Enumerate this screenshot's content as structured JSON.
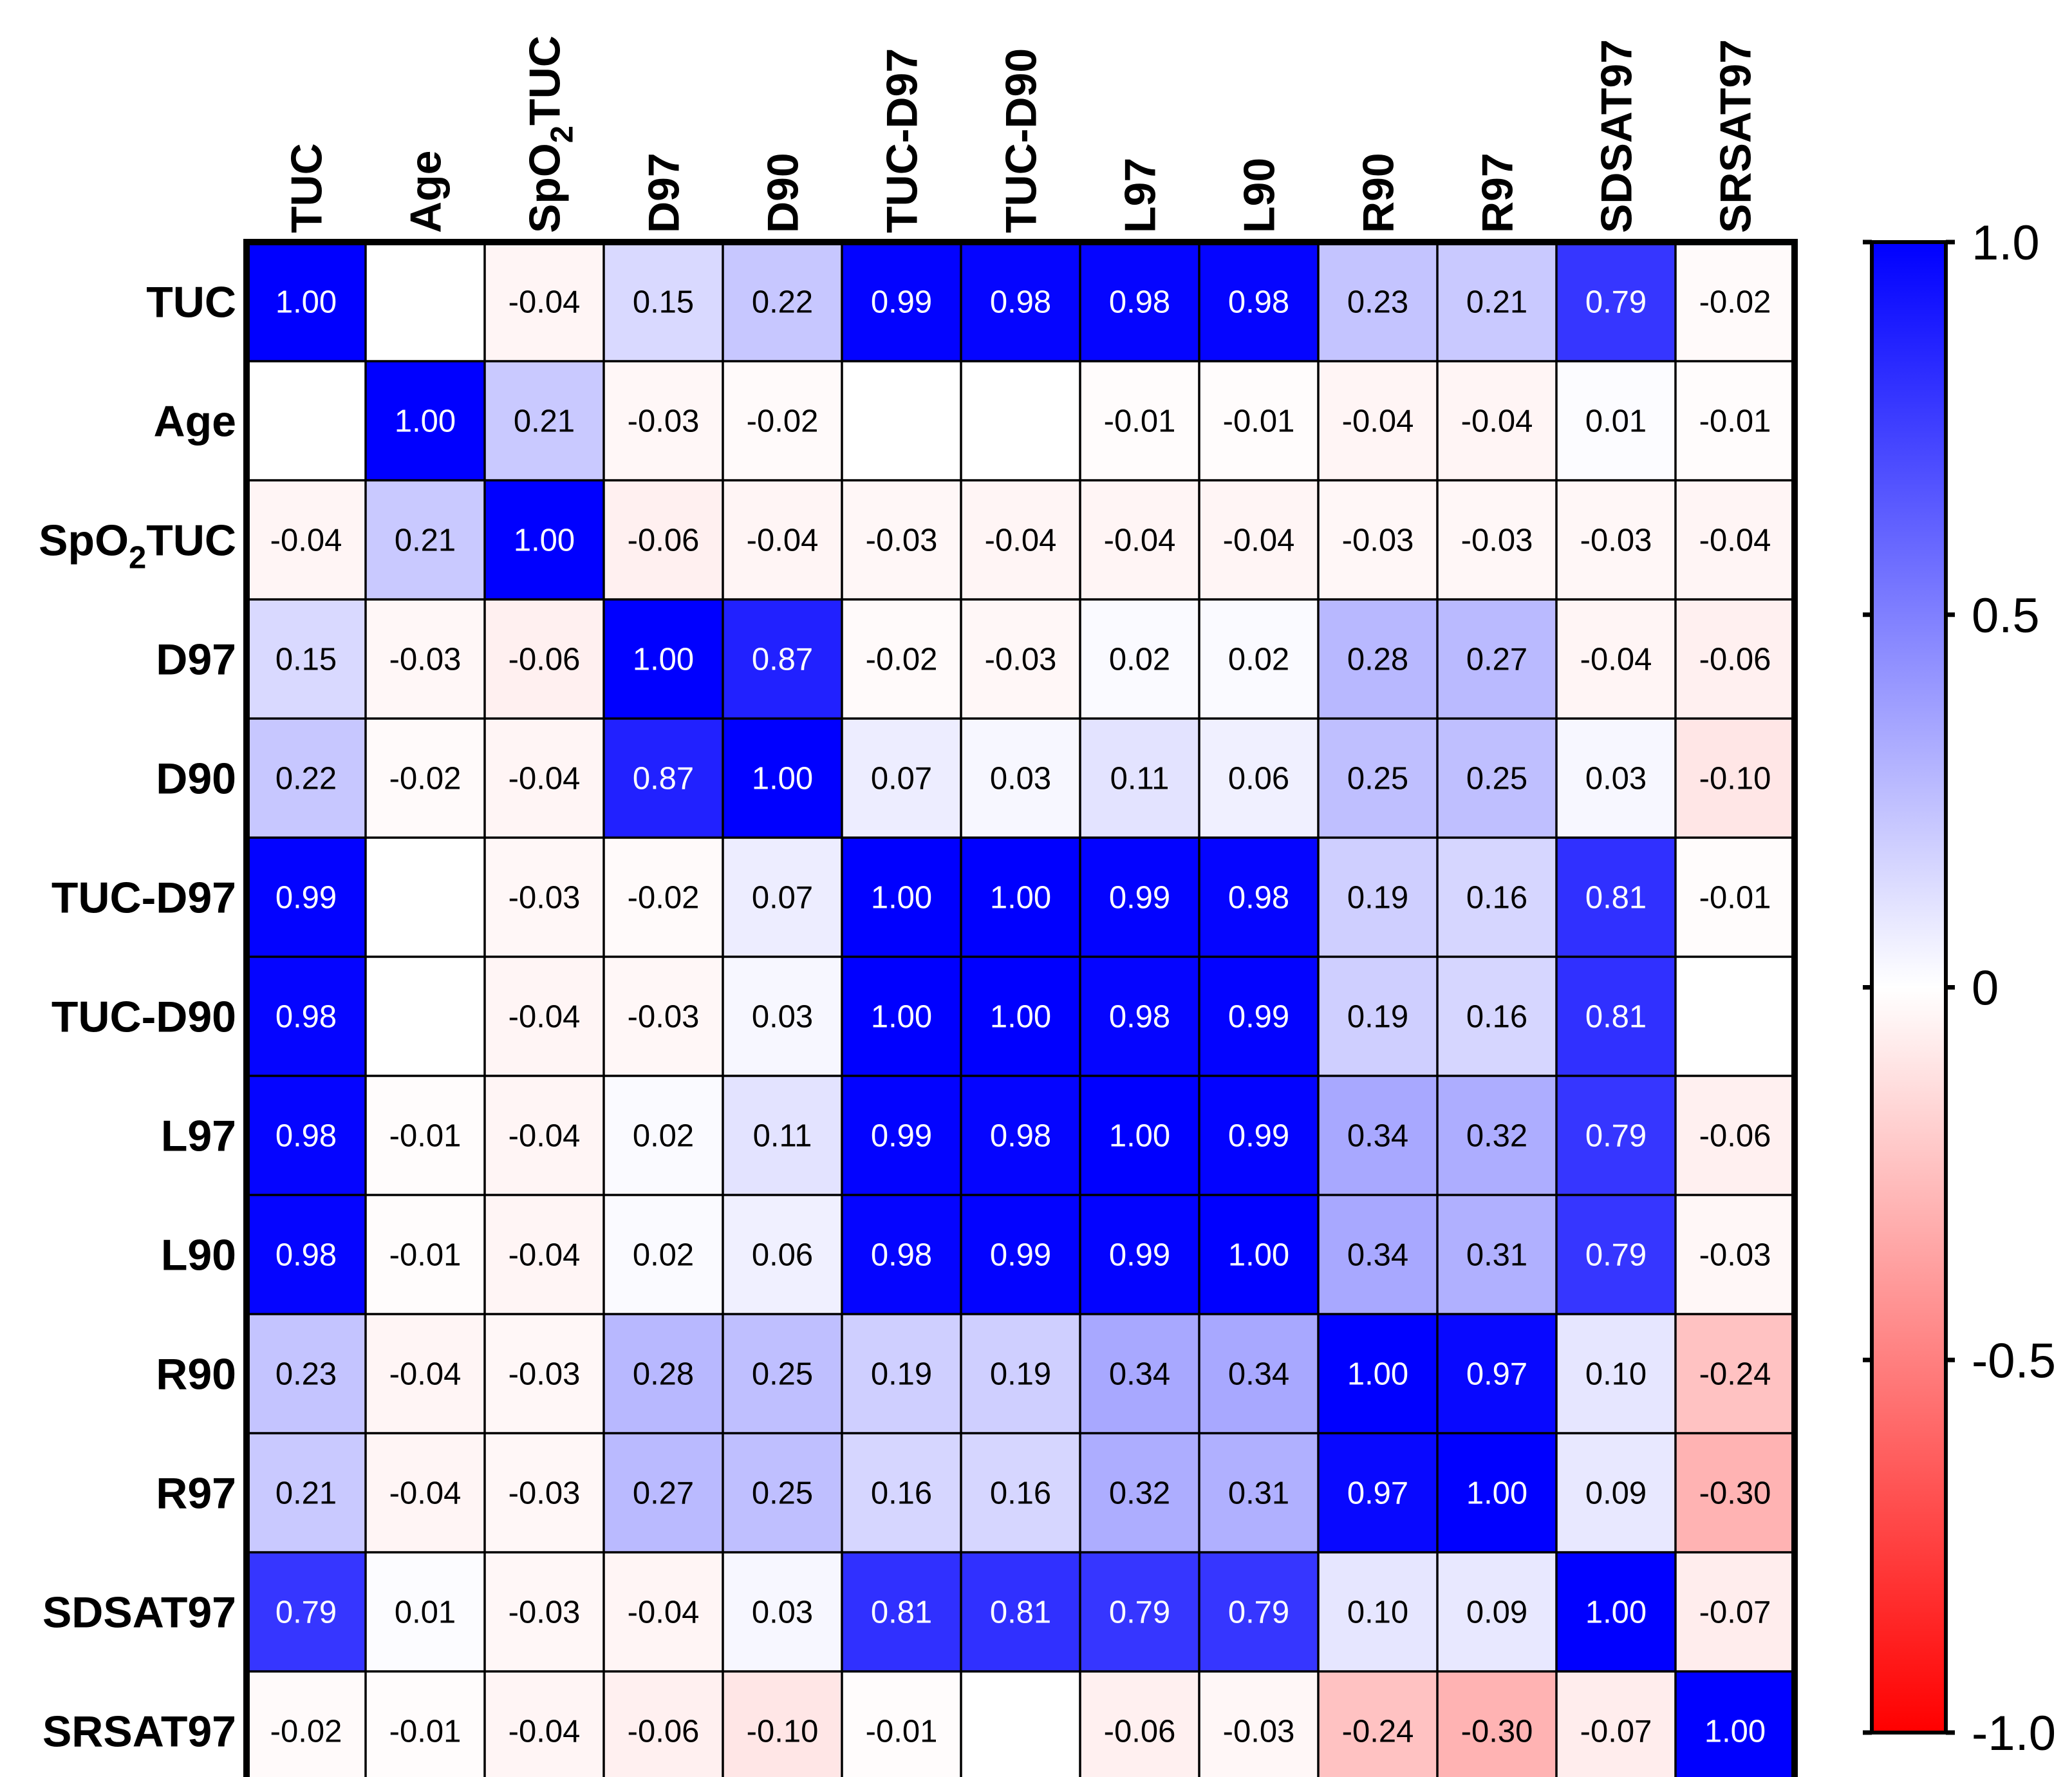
{
  "chart_data": {
    "type": "heatmap",
    "title": "",
    "row_labels": [
      "TUC",
      "Age",
      "SpO₂TUC",
      "D97",
      "D90",
      "TUC-D97",
      "TUC-D90",
      "L97",
      "L90",
      "R90",
      "R97",
      "SDSAT97",
      "SRSAT97"
    ],
    "col_labels": [
      "TUC",
      "Age",
      "SpO₂TUC",
      "D97",
      "D90",
      "TUC-D97",
      "TUC-D90",
      "L97",
      "L90",
      "R90",
      "R97",
      "SDSAT97",
      "SRSAT97"
    ],
    "matrix": [
      [
        1.0,
        null,
        -0.04,
        0.15,
        0.22,
        0.99,
        0.98,
        0.98,
        0.98,
        0.23,
        0.21,
        0.79,
        -0.02
      ],
      [
        null,
        1.0,
        0.21,
        -0.03,
        -0.02,
        null,
        null,
        -0.01,
        -0.01,
        -0.04,
        -0.04,
        0.01,
        -0.01
      ],
      [
        -0.04,
        0.21,
        1.0,
        -0.06,
        -0.04,
        -0.03,
        -0.04,
        -0.04,
        -0.04,
        -0.03,
        -0.03,
        -0.03,
        -0.04
      ],
      [
        0.15,
        -0.03,
        -0.06,
        1.0,
        0.87,
        -0.02,
        -0.03,
        0.02,
        0.02,
        0.28,
        0.27,
        -0.04,
        -0.06
      ],
      [
        0.22,
        -0.02,
        -0.04,
        0.87,
        1.0,
        0.07,
        0.03,
        0.11,
        0.06,
        0.25,
        0.25,
        0.03,
        -0.1
      ],
      [
        0.99,
        null,
        -0.03,
        -0.02,
        0.07,
        1.0,
        1.0,
        0.99,
        0.98,
        0.19,
        0.16,
        0.81,
        -0.01
      ],
      [
        0.98,
        null,
        -0.04,
        -0.03,
        0.03,
        1.0,
        1.0,
        0.98,
        0.99,
        0.19,
        0.16,
        0.81,
        null
      ],
      [
        0.98,
        -0.01,
        -0.04,
        0.02,
        0.11,
        0.99,
        0.98,
        1.0,
        0.99,
        0.34,
        0.32,
        0.79,
        -0.06
      ],
      [
        0.98,
        -0.01,
        -0.04,
        0.02,
        0.06,
        0.98,
        0.99,
        0.99,
        1.0,
        0.34,
        0.31,
        0.79,
        -0.03
      ],
      [
        0.23,
        -0.04,
        -0.03,
        0.28,
        0.25,
        0.19,
        0.19,
        0.34,
        0.34,
        1.0,
        0.97,
        0.1,
        -0.24
      ],
      [
        0.21,
        -0.04,
        -0.03,
        0.27,
        0.25,
        0.16,
        0.16,
        0.32,
        0.31,
        0.97,
        1.0,
        0.09,
        -0.3
      ],
      [
        0.79,
        0.01,
        -0.03,
        -0.04,
        0.03,
        0.81,
        0.81,
        0.79,
        0.79,
        0.1,
        0.09,
        1.0,
        -0.07
      ],
      [
        -0.02,
        -0.01,
        -0.04,
        -0.06,
        -0.1,
        -0.01,
        null,
        -0.06,
        -0.03,
        -0.24,
        -0.3,
        -0.07,
        1.0
      ]
    ],
    "colorbar": {
      "min": -1.0,
      "max": 1.0,
      "ticks": [
        1.0,
        0.5,
        0,
        -0.5,
        -1.0
      ],
      "tick_labels": [
        "1.0",
        "0.5",
        "0",
        "-0.5",
        "-1.0"
      ],
      "colors": {
        "low": "#ff0000",
        "mid": "#ffffff",
        "high": "#0000ff"
      }
    },
    "grid": true,
    "legend_position": "right"
  }
}
